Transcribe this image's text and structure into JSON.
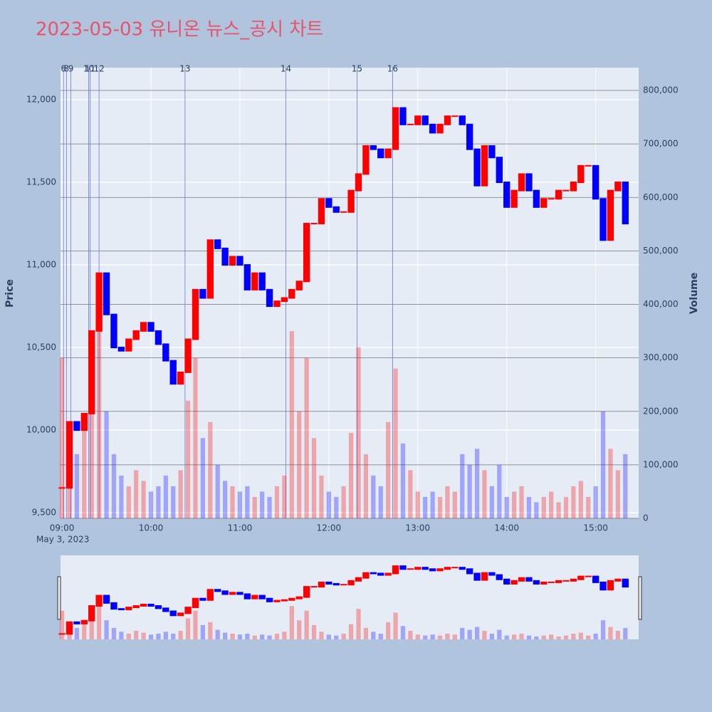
{
  "chart_data": {
    "type": "candlestick",
    "title": "2023-05-03 유니온 뉴스_공시 차트",
    "y_label": "Price",
    "y2_label": "Volume",
    "x": [
      "09:00",
      "09:05",
      "09:10",
      "09:15",
      "09:20",
      "09:25",
      "09:30",
      "09:35",
      "09:40",
      "09:45",
      "09:50",
      "09:55",
      "10:00",
      "10:05",
      "10:10",
      "10:15",
      "10:20",
      "10:25",
      "10:30",
      "10:35",
      "10:40",
      "10:45",
      "10:50",
      "10:55",
      "11:00",
      "11:05",
      "11:10",
      "11:15",
      "11:20",
      "11:25",
      "11:30",
      "11:35",
      "11:40",
      "11:45",
      "11:50",
      "11:55",
      "12:00",
      "12:05",
      "12:10",
      "12:15",
      "12:20",
      "12:25",
      "12:30",
      "12:35",
      "12:40",
      "12:45",
      "12:50",
      "12:55",
      "13:00",
      "13:05",
      "13:10",
      "13:15",
      "13:20",
      "13:25",
      "13:30",
      "13:35",
      "13:40",
      "13:45",
      "13:50",
      "13:55",
      "14:00",
      "14:05",
      "14:10",
      "14:15",
      "14:20",
      "14:25",
      "14:30",
      "14:35",
      "14:40",
      "14:45",
      "14:50",
      "14:55",
      "15:00",
      "15:05",
      "15:10",
      "15:15",
      "15:20"
    ],
    "series": [
      {
        "name": "Price",
        "values": [
          9650,
          10050,
          10000,
          10100,
          10600,
          10950,
          10700,
          10500,
          10480,
          10550,
          10600,
          10650,
          10600,
          10520,
          10420,
          10280,
          10350,
          10550,
          10850,
          10800,
          11150,
          11100,
          11000,
          11050,
          11000,
          10850,
          10950,
          10850,
          10750,
          10780,
          10800,
          10850,
          10900,
          11250,
          11250,
          11400,
          11350,
          11320,
          11320,
          11450,
          11550,
          11720,
          11700,
          11650,
          11700,
          11950,
          11850,
          11850,
          11900,
          11850,
          11800,
          11850,
          11900,
          11900,
          11850,
          11700,
          11480,
          11720,
          11650,
          11500,
          11350,
          11450,
          11550,
          11450,
          11350,
          11400,
          11400,
          11450,
          11450,
          11500,
          11600,
          11600,
          11400,
          11150,
          11450,
          11500,
          11250
        ]
      },
      {
        "name": "Volume",
        "axis": "y2",
        "values": [
          300000,
          150000,
          120000,
          180000,
          250000,
          450000,
          200000,
          120000,
          80000,
          60000,
          90000,
          70000,
          50000,
          60000,
          80000,
          60000,
          90000,
          220000,
          300000,
          150000,
          180000,
          100000,
          70000,
          60000,
          50000,
          60000,
          40000,
          50000,
          40000,
          60000,
          80000,
          350000,
          200000,
          300000,
          150000,
          80000,
          50000,
          40000,
          60000,
          160000,
          320000,
          120000,
          80000,
          60000,
          180000,
          280000,
          140000,
          90000,
          50000,
          40000,
          50000,
          40000,
          60000,
          50000,
          120000,
          100000,
          130000,
          90000,
          60000,
          100000,
          40000,
          50000,
          60000,
          40000,
          30000,
          40000,
          50000,
          30000,
          40000,
          60000,
          70000,
          40000,
          60000,
          200000,
          130000,
          90000,
          120000
        ]
      }
    ],
    "up_color": "#ff0000",
    "down_color": "#0000ff",
    "xlim": [
      "08:59",
      "15:29"
    ],
    "xticks": [
      "09:00",
      "10:00",
      "11:00",
      "12:00",
      "13:00",
      "14:00",
      "15:00"
    ],
    "x_sublabel": "May 3, 2023",
    "ylim": [
      9466,
      12194
    ],
    "yticks": [
      {
        "value": 9500,
        "label": "9,500"
      },
      {
        "value": 10000,
        "label": "10,000"
      },
      {
        "value": 10500,
        "label": "10,500"
      },
      {
        "value": 11000,
        "label": "11,000"
      },
      {
        "value": 11500,
        "label": "11,500"
      },
      {
        "value": 12000,
        "label": "12,000"
      }
    ],
    "y2lim": [
      0,
      842600
    ],
    "y2ticks": [
      0,
      {
        "value": 100000,
        "label": "100,000"
      },
      {
        "value": 200000,
        "label": "200,000"
      },
      {
        "value": 300000,
        "label": "300,000"
      },
      {
        "value": 400000,
        "label": "400,000"
      },
      {
        "value": 500000,
        "label": "500,000"
      },
      {
        "value": 600000,
        "label": "600,000"
      },
      {
        "value": 700000,
        "label": "700,000"
      },
      {
        "value": 800000,
        "label": "800,000"
      }
    ],
    "events": [
      {
        "x": "09:01",
        "label": "6"
      },
      {
        "x": "09:03",
        "label": "8"
      },
      {
        "x": "09:06",
        "label": "9"
      },
      {
        "x": "09:18",
        "label": "10"
      },
      {
        "x": "09:19",
        "label": "11"
      },
      {
        "x": "09:25",
        "label": "12"
      },
      {
        "x": "10:23",
        "label": "13"
      },
      {
        "x": "11:31",
        "label": "14"
      },
      {
        "x": "12:19",
        "label": "15"
      },
      {
        "x": "12:43",
        "label": "16"
      }
    ],
    "grid": true
  }
}
